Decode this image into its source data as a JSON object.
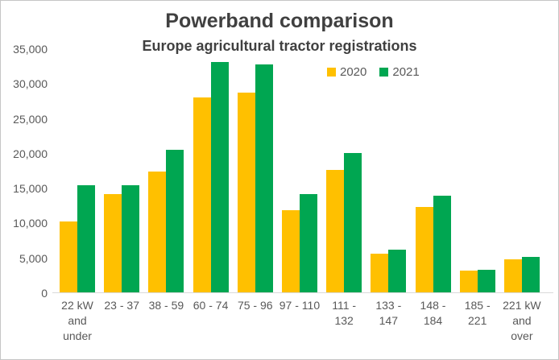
{
  "title": "Powerband comparison",
  "subtitle": "Europe agricultural tractor registrations",
  "colors": {
    "series_2020": "#FFC000",
    "series_2021": "#00A651",
    "title_text": "#404040",
    "axis_text": "#595959",
    "axis_line": "#d9d9d9"
  },
  "chart_data": {
    "type": "bar",
    "title": "Powerband comparison",
    "subtitle": "Europe agricultural tractor registrations",
    "categories": [
      "22 kW and under",
      "23 - 37",
      "38 - 59",
      "60 - 74",
      "75 - 96",
      "97 - 110",
      "111 - 132",
      "133 - 147",
      "148 - 184",
      "185 - 221",
      "221 kW and over"
    ],
    "category_label_lines": [
      [
        "22 kW",
        "and",
        "under"
      ],
      [
        "23 - 37"
      ],
      [
        "38 - 59"
      ],
      [
        "60 - 74"
      ],
      [
        "75 - 96"
      ],
      [
        "97 - 110"
      ],
      [
        "111 -",
        "132"
      ],
      [
        "133 -",
        "147"
      ],
      [
        "148 -",
        "184"
      ],
      [
        "185 -",
        "221"
      ],
      [
        "221 kW",
        "and",
        "over"
      ]
    ],
    "series": [
      {
        "name": "2020",
        "color": "#FFC000",
        "values": [
          10200,
          14100,
          17400,
          28100,
          28800,
          11800,
          17600,
          5600,
          12300,
          3100,
          4800
        ]
      },
      {
        "name": "2021",
        "color": "#00A651",
        "values": [
          15400,
          15400,
          20500,
          33100,
          32800,
          14100,
          20000,
          6100,
          13900,
          3300,
          5100
        ]
      }
    ],
    "y_ticks": [
      35000,
      30000,
      25000,
      20000,
      15000,
      10000,
      5000,
      0
    ],
    "ylim": [
      0,
      35000
    ],
    "xlabel": "",
    "ylabel": "",
    "grid": false,
    "legend_position": "inside-upper-right"
  }
}
